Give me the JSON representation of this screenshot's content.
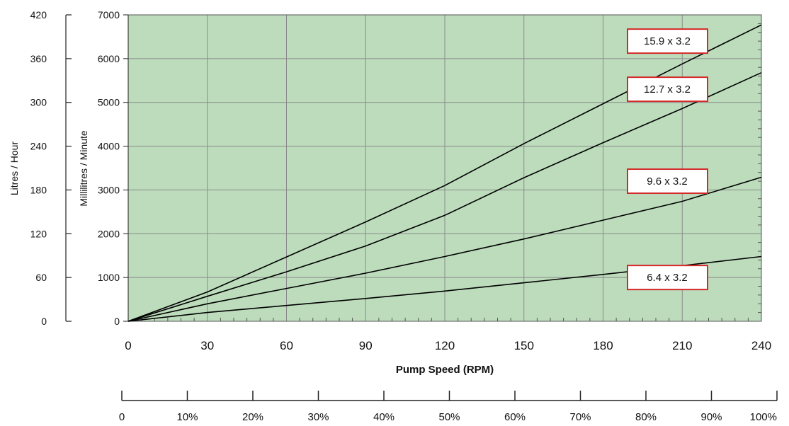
{
  "chart_data": {
    "type": "line",
    "xlabel": "Pump Speed (RPM)",
    "ylabel": "Millilitres / Minute",
    "y2label": "Litres / Hour",
    "xlim": [
      0,
      240
    ],
    "ylim": [
      0,
      7000
    ],
    "y2lim": [
      0,
      420
    ],
    "x_ticks": [
      "0",
      "30",
      "60",
      "90",
      "120",
      "150",
      "180",
      "210",
      "240"
    ],
    "y_ticks": [
      "0",
      "1000",
      "2000",
      "3000",
      "4000",
      "5000",
      "6000",
      "7000"
    ],
    "y2_ticks": [
      "0",
      "60",
      "120",
      "180",
      "240",
      "300",
      "360",
      "420"
    ],
    "percent_ticks": [
      "0",
      "10%",
      "20%",
      "30%",
      "40%",
      "50%",
      "60%",
      "70%",
      "80%",
      "90%",
      "100%"
    ],
    "grid": true,
    "series": [
      {
        "name": "15.9 x 3.2",
        "x": [
          0,
          30,
          60,
          90,
          120,
          150,
          180,
          210,
          240
        ],
        "y": [
          0,
          670,
          1470,
          2270,
          3100,
          4060,
          4970,
          5880,
          6770
        ]
      },
      {
        "name": "12.7 x 3.2",
        "x": [
          0,
          30,
          60,
          90,
          120,
          150,
          180,
          210,
          240
        ],
        "y": [
          0,
          570,
          1130,
          1720,
          2420,
          3280,
          4080,
          4860,
          5680
        ]
      },
      {
        "name": "9.6 x 3.2",
        "x": [
          0,
          30,
          60,
          90,
          120,
          150,
          180,
          210,
          240
        ],
        "y": [
          0,
          400,
          750,
          1100,
          1480,
          1880,
          2310,
          2740,
          3290
        ]
      },
      {
        "name": "6.4 x 3.2",
        "x": [
          0,
          30,
          60,
          90,
          120,
          150,
          180,
          210,
          240
        ],
        "y": [
          0,
          200,
          360,
          520,
          690,
          880,
          1070,
          1270,
          1480
        ]
      }
    ],
    "colors": {
      "plot_background": "#bcdcbc",
      "grid": "#8a8a8a",
      "line": "#000000",
      "label_border": "#d42a2a"
    }
  }
}
